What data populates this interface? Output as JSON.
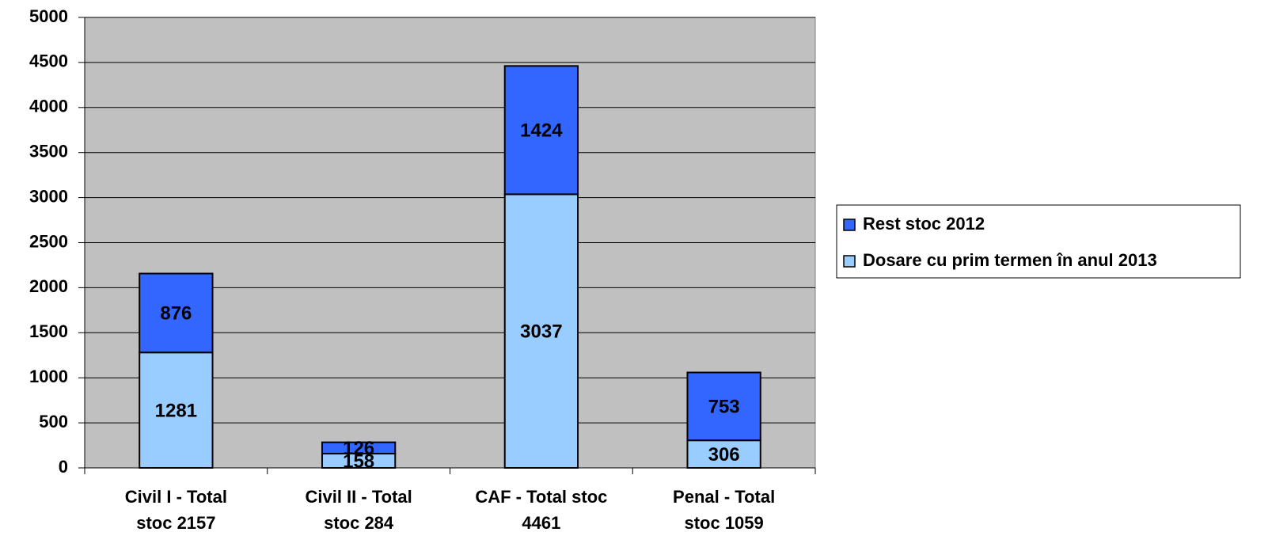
{
  "chart_data": {
    "type": "stacked_bar",
    "categories": [
      [
        "Civil I - Total",
        "stoc 2157"
      ],
      [
        "Civil II - Total",
        "stoc 284"
      ],
      [
        "CAF - Total stoc",
        "4461"
      ],
      [
        "Penal - Total",
        "stoc 1059"
      ]
    ],
    "series": [
      {
        "name": "Dosare cu prim termen în anul 2013",
        "color": "#99ccff",
        "values": [
          1281,
          158,
          3037,
          306
        ]
      },
      {
        "name": "Rest stoc 2012",
        "color": "#3366ff",
        "values": [
          876,
          126,
          1424,
          753
        ]
      }
    ],
    "ylim": [
      0,
      5000
    ],
    "yticks": [
      0,
      500,
      1000,
      1500,
      2000,
      2500,
      3000,
      3500,
      4000,
      4500,
      5000
    ],
    "grid": true,
    "legend": "right"
  }
}
